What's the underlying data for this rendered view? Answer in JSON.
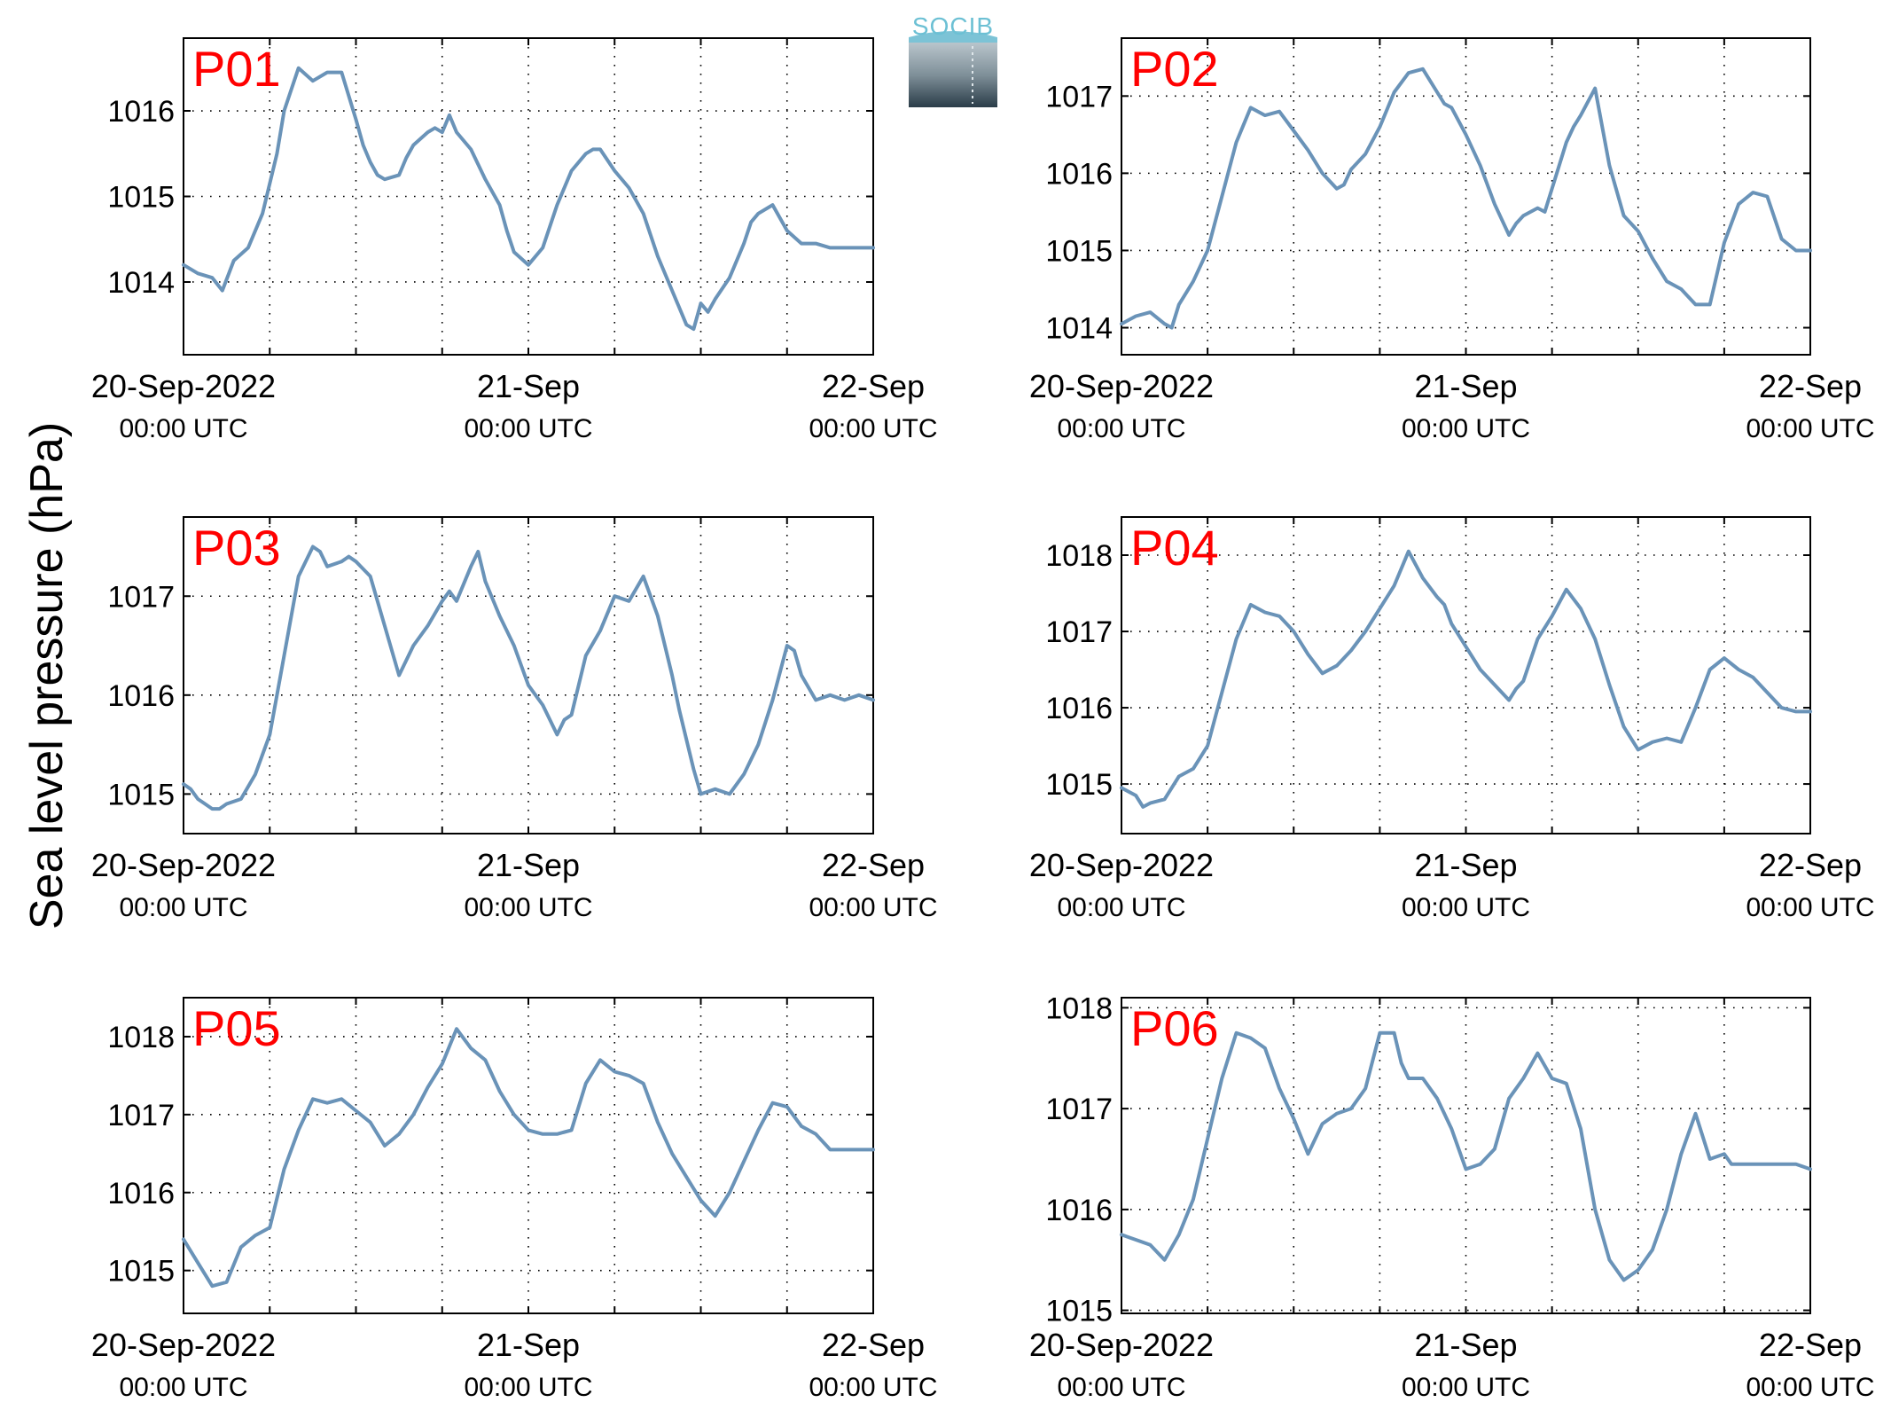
{
  "figure": {
    "ylabel": "Sea level pressure (hPa)",
    "logo_text": "SOCIB",
    "line_color": "#6a93b8",
    "panel_label_color": "#ff0000"
  },
  "chart_data": [
    {
      "type": "line",
      "label": "P01",
      "x_ticks": [
        [
          "20-Sep-2022",
          "00:00 UTC"
        ],
        [
          "21-Sep",
          "00:00 UTC"
        ],
        [
          "22-Sep",
          "00:00 UTC"
        ]
      ],
      "x_range_hours": [
        0,
        48
      ],
      "ylim": [
        1013.15,
        1016.85
      ],
      "yticks": [
        1014,
        1015,
        1016
      ],
      "grid": true,
      "series": [
        {
          "x": [
            0,
            1,
            2,
            2.7,
            3.5,
            4.5,
            5.5,
            6.5,
            7,
            8,
            9,
            10,
            11,
            12,
            12.5,
            13,
            13.5,
            14,
            15,
            15.5,
            16,
            17,
            17.5,
            18,
            18.5,
            19,
            20,
            21,
            22,
            22.5,
            23,
            24,
            25,
            26,
            27,
            28,
            28.5,
            29,
            30,
            31,
            32,
            33,
            34,
            35,
            35.5,
            36,
            36.5,
            37,
            38,
            39,
            39.5,
            40,
            41,
            42,
            43,
            44,
            45,
            46,
            47,
            48
          ],
          "y": [
            1014.2,
            1014.1,
            1014.05,
            1013.9,
            1014.25,
            1014.4,
            1014.8,
            1015.5,
            1016.0,
            1016.5,
            1016.35,
            1016.45,
            1016.45,
            1015.9,
            1015.6,
            1015.4,
            1015.25,
            1015.2,
            1015.25,
            1015.45,
            1015.6,
            1015.75,
            1015.8,
            1015.75,
            1015.95,
            1015.75,
            1015.55,
            1015.2,
            1014.9,
            1014.6,
            1014.35,
            1014.2,
            1014.4,
            1014.9,
            1015.3,
            1015.5,
            1015.55,
            1015.55,
            1015.3,
            1015.1,
            1014.8,
            1014.3,
            1013.9,
            1013.5,
            1013.45,
            1013.75,
            1013.65,
            1013.8,
            1014.05,
            1014.45,
            1014.7,
            1014.8,
            1014.9,
            1014.6,
            1014.45,
            1014.45,
            1014.4,
            1014.4,
            1014.4,
            1014.4
          ]
        }
      ]
    },
    {
      "type": "line",
      "label": "P02",
      "x_ticks": [
        [
          "20-Sep-2022",
          "00:00 UTC"
        ],
        [
          "21-Sep",
          "00:00 UTC"
        ],
        [
          "22-Sep",
          "00:00 UTC"
        ]
      ],
      "x_range_hours": [
        0,
        48
      ],
      "ylim": [
        1013.65,
        1017.75
      ],
      "yticks": [
        1014,
        1015,
        1016,
        1017
      ],
      "grid": true,
      "series": [
        {
          "x": [
            0,
            1,
            2,
            3,
            3.5,
            4,
            5,
            6,
            7,
            8,
            9,
            10,
            11,
            12,
            13,
            14,
            15,
            15.5,
            16,
            17,
            18,
            19,
            20,
            21,
            22,
            22.5,
            23,
            24,
            25,
            26,
            27,
            27.5,
            28,
            29,
            29.5,
            30,
            31,
            31.5,
            32,
            33,
            34,
            35,
            36,
            37,
            38,
            39,
            40,
            41,
            42,
            43,
            44,
            45,
            46,
            47,
            48
          ],
          "y": [
            1014.05,
            1014.15,
            1014.2,
            1014.05,
            1014.0,
            1014.3,
            1014.6,
            1015.0,
            1015.7,
            1016.4,
            1016.85,
            1016.75,
            1016.8,
            1016.55,
            1016.3,
            1016.0,
            1015.8,
            1015.85,
            1016.05,
            1016.25,
            1016.6,
            1017.05,
            1017.3,
            1017.35,
            1017.05,
            1016.9,
            1016.85,
            1016.5,
            1016.1,
            1015.6,
            1015.2,
            1015.35,
            1015.45,
            1015.55,
            1015.5,
            1015.8,
            1016.4,
            1016.6,
            1016.75,
            1017.1,
            1016.1,
            1015.45,
            1015.25,
            1014.9,
            1014.6,
            1014.5,
            1014.3,
            1014.3,
            1015.1,
            1015.6,
            1015.75,
            1015.7,
            1015.15,
            1015.0,
            1015.0
          ]
        }
      ]
    },
    {
      "type": "line",
      "label": "P03",
      "x_ticks": [
        [
          "20-Sep-2022",
          "00:00 UTC"
        ],
        [
          "21-Sep",
          "00:00 UTC"
        ],
        [
          "22-Sep",
          "00:00 UTC"
        ]
      ],
      "x_range_hours": [
        0,
        48
      ],
      "ylim": [
        1014.6,
        1017.8
      ],
      "yticks": [
        1015,
        1016,
        1017
      ],
      "grid": true,
      "series": [
        {
          "x": [
            0,
            0.5,
            1,
            1.5,
            2,
            2.5,
            3,
            4,
            5,
            6,
            7,
            8,
            9,
            9.5,
            10,
            11,
            11.5,
            12,
            13,
            14,
            15,
            15.5,
            16,
            17,
            18,
            18.5,
            19,
            20,
            20.5,
            21,
            22,
            23,
            24,
            25,
            26,
            26.5,
            27,
            28,
            29,
            30,
            31,
            32,
            33,
            34,
            34.5,
            35,
            35.5,
            36,
            37,
            38,
            39,
            40,
            41,
            42,
            42.5,
            43,
            44,
            45,
            46,
            47,
            48
          ],
          "y": [
            1015.1,
            1015.05,
            1014.95,
            1014.9,
            1014.85,
            1014.85,
            1014.9,
            1014.95,
            1015.2,
            1015.6,
            1016.4,
            1017.2,
            1017.5,
            1017.45,
            1017.3,
            1017.35,
            1017.4,
            1017.35,
            1017.2,
            1016.7,
            1016.2,
            1016.35,
            1016.5,
            1016.7,
            1016.95,
            1017.05,
            1016.95,
            1017.3,
            1017.45,
            1017.15,
            1016.8,
            1016.5,
            1016.1,
            1015.9,
            1015.6,
            1015.75,
            1015.8,
            1016.4,
            1016.65,
            1017.0,
            1016.95,
            1017.2,
            1016.8,
            1016.2,
            1015.85,
            1015.55,
            1015.25,
            1015.0,
            1015.05,
            1015.0,
            1015.2,
            1015.5,
            1015.95,
            1016.5,
            1016.45,
            1016.2,
            1015.95,
            1016.0,
            1015.95,
            1016.0,
            1015.95
          ]
        }
      ]
    },
    {
      "type": "line",
      "label": "P04",
      "x_ticks": [
        [
          "20-Sep-2022",
          "00:00 UTC"
        ],
        [
          "21-Sep",
          "00:00 UTC"
        ],
        [
          "22-Sep",
          "00:00 UTC"
        ]
      ],
      "x_range_hours": [
        0,
        48
      ],
      "ylim": [
        1014.35,
        1018.5
      ],
      "yticks": [
        1015,
        1016,
        1017,
        1018
      ],
      "grid": true,
      "series": [
        {
          "x": [
            0,
            1,
            1.5,
            2,
            3,
            4,
            5,
            6,
            7,
            8,
            9,
            10,
            11,
            12,
            13,
            14,
            15,
            16,
            17,
            18,
            19,
            20,
            21,
            22,
            22.5,
            23,
            24,
            25,
            26,
            27,
            27.5,
            28,
            29,
            30,
            31,
            32,
            33,
            34,
            35,
            36,
            37,
            38,
            39,
            40,
            41,
            42,
            43,
            44,
            45,
            46,
            47,
            48
          ],
          "y": [
            1014.95,
            1014.85,
            1014.7,
            1014.75,
            1014.8,
            1015.1,
            1015.2,
            1015.5,
            1016.2,
            1016.9,
            1017.35,
            1017.25,
            1017.2,
            1017.0,
            1016.7,
            1016.45,
            1016.55,
            1016.75,
            1017.0,
            1017.3,
            1017.6,
            1018.05,
            1017.7,
            1017.45,
            1017.35,
            1017.1,
            1016.8,
            1016.5,
            1016.3,
            1016.1,
            1016.25,
            1016.35,
            1016.9,
            1017.2,
            1017.55,
            1017.3,
            1016.9,
            1016.3,
            1015.75,
            1015.45,
            1015.55,
            1015.6,
            1015.55,
            1016.0,
            1016.5,
            1016.65,
            1016.5,
            1016.4,
            1016.2,
            1016.0,
            1015.95,
            1015.95
          ]
        }
      ]
    },
    {
      "type": "line",
      "label": "P05",
      "x_ticks": [
        [
          "20-Sep-2022",
          "00:00 UTC"
        ],
        [
          "21-Sep",
          "00:00 UTC"
        ],
        [
          "22-Sep",
          "00:00 UTC"
        ]
      ],
      "x_range_hours": [
        0,
        48
      ],
      "ylim": [
        1014.45,
        1018.5
      ],
      "yticks": [
        1015,
        1016,
        1017,
        1018
      ],
      "grid": true,
      "series": [
        {
          "x": [
            0,
            1,
            2,
            3,
            4,
            5,
            6,
            7,
            8,
            9,
            10,
            11,
            12,
            13,
            14,
            15,
            16,
            17,
            18,
            19,
            20,
            21,
            22,
            23,
            24,
            25,
            26,
            27,
            28,
            29,
            30,
            31,
            32,
            33,
            34,
            35,
            36,
            37,
            38,
            39,
            40,
            41,
            42,
            43,
            44,
            45,
            46,
            47,
            48
          ],
          "y": [
            1015.4,
            1015.1,
            1014.8,
            1014.85,
            1015.3,
            1015.45,
            1015.55,
            1016.3,
            1016.8,
            1017.2,
            1017.15,
            1017.2,
            1017.05,
            1016.9,
            1016.6,
            1016.75,
            1017.0,
            1017.35,
            1017.65,
            1018.1,
            1017.85,
            1017.7,
            1017.3,
            1017.0,
            1016.8,
            1016.75,
            1016.75,
            1016.8,
            1017.4,
            1017.7,
            1017.55,
            1017.5,
            1017.4,
            1016.9,
            1016.5,
            1016.2,
            1015.9,
            1015.7,
            1016.0,
            1016.4,
            1016.8,
            1017.15,
            1017.1,
            1016.85,
            1016.75,
            1016.55,
            1016.55,
            1016.55,
            1016.55
          ]
        }
      ]
    },
    {
      "type": "line",
      "label": "P06",
      "x_ticks": [
        [
          "20-Sep-2022",
          "00:00 UTC"
        ],
        [
          "21-Sep",
          "00:00 UTC"
        ],
        [
          "22-Sep",
          "00:00 UTC"
        ]
      ],
      "x_range_hours": [
        0,
        48
      ],
      "ylim": [
        1014.97,
        1018.1
      ],
      "yticks": [
        1015,
        1016,
        1017,
        1018
      ],
      "grid": true,
      "series": [
        {
          "x": [
            0,
            1,
            2,
            3,
            4,
            5,
            6,
            7,
            8,
            9,
            10,
            11,
            12,
            13,
            14,
            15,
            16,
            17,
            18,
            19,
            19.5,
            20,
            21,
            22,
            23,
            24,
            25,
            26,
            27,
            28,
            29,
            30,
            31,
            32,
            33,
            34,
            35,
            36,
            37,
            37.5,
            38,
            39,
            40,
            41,
            42,
            42.5,
            43,
            44,
            45,
            46,
            47,
            48
          ],
          "y": [
            1015.75,
            1015.7,
            1015.65,
            1015.5,
            1015.75,
            1016.1,
            1016.7,
            1017.3,
            1017.75,
            1017.7,
            1017.6,
            1017.2,
            1016.9,
            1016.55,
            1016.85,
            1016.95,
            1017.0,
            1017.2,
            1017.75,
            1017.75,
            1017.45,
            1017.3,
            1017.3,
            1017.1,
            1016.8,
            1016.4,
            1016.45,
            1016.6,
            1017.1,
            1017.3,
            1017.55,
            1017.3,
            1017.25,
            1016.8,
            1016.0,
            1015.5,
            1015.3,
            1015.4,
            1015.6,
            1015.8,
            1016.0,
            1016.55,
            1016.95,
            1016.5,
            1016.55,
            1016.45,
            1016.45,
            1016.45,
            1016.45,
            1016.45,
            1016.45,
            1016.4
          ]
        }
      ]
    }
  ]
}
